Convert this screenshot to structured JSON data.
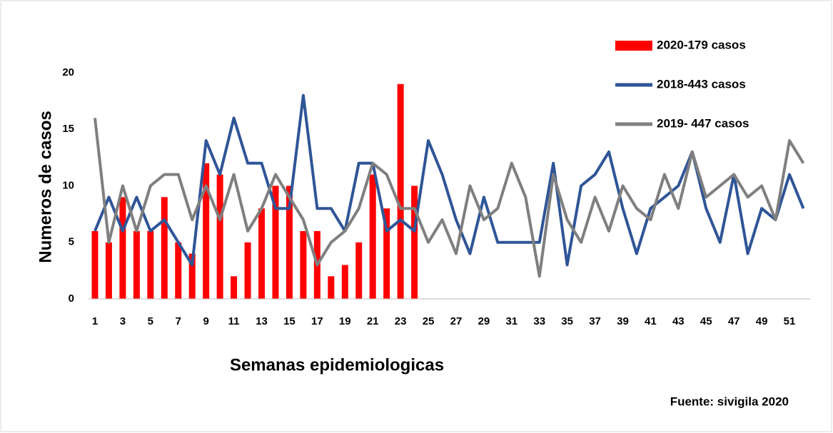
{
  "chart_data": {
    "type": "bar",
    "y_label": "Numeros de casos",
    "x_label": "Semanas epidemiologicas",
    "source": "Fuente: sivigila 2020",
    "categories": [
      1,
      null,
      3,
      null,
      5,
      null,
      7,
      null,
      9,
      null,
      11,
      null,
      13,
      null,
      15,
      null,
      17,
      null,
      19,
      null,
      21,
      null,
      23,
      null,
      25,
      null,
      27,
      null,
      29,
      null,
      31,
      null,
      33,
      null,
      35,
      null,
      37,
      null,
      39,
      null,
      41,
      null,
      43,
      null,
      45,
      null,
      47,
      null,
      49,
      null,
      51,
      null
    ],
    "series": [
      {
        "name": "2020-179 casos",
        "type": "bar",
        "color": "#ff0000",
        "values": [
          6,
          5,
          9,
          6,
          6,
          9,
          5,
          4,
          12,
          11,
          2,
          5,
          8,
          10,
          10,
          6,
          6,
          2,
          3,
          5,
          11,
          8,
          19,
          10,
          null,
          null,
          null,
          null,
          null,
          null,
          null,
          null,
          null,
          null,
          null,
          null,
          null,
          null,
          null,
          null,
          null,
          null,
          null,
          null,
          null,
          null,
          null,
          null,
          null,
          null,
          null,
          null
        ]
      },
      {
        "name": "2018-443 casos",
        "type": "line",
        "color": "#2f5597",
        "values": [
          6,
          9,
          6,
          9,
          6,
          7,
          5,
          3,
          14,
          11,
          16,
          12,
          12,
          8,
          8,
          18,
          8,
          8,
          6,
          12,
          12,
          6,
          7,
          6,
          14,
          11,
          7,
          4,
          9,
          5,
          5,
          5,
          5,
          12,
          3,
          10,
          11,
          13,
          8,
          4,
          8,
          9,
          10,
          13,
          8,
          5,
          11,
          4,
          8,
          7,
          11,
          8
        ]
      },
      {
        "name": "2019- 447 casos",
        "type": "line",
        "color": "#7f7f7f",
        "values": [
          16,
          5,
          10,
          6,
          10,
          11,
          11,
          7,
          10,
          7,
          11,
          6,
          8,
          11,
          9,
          7,
          3,
          5,
          6,
          8,
          12,
          11,
          8,
          8,
          5,
          7,
          4,
          10,
          7,
          8,
          12,
          9,
          2,
          11,
          7,
          5,
          9,
          6,
          10,
          8,
          7,
          11,
          8,
          13,
          9,
          10,
          11,
          9,
          10,
          7,
          14,
          12
        ]
      }
    ],
    "ylim": [
      0,
      20
    ],
    "yticks": [
      0,
      5,
      10,
      15,
      20
    ],
    "grid": false,
    "legend": "top-right"
  }
}
